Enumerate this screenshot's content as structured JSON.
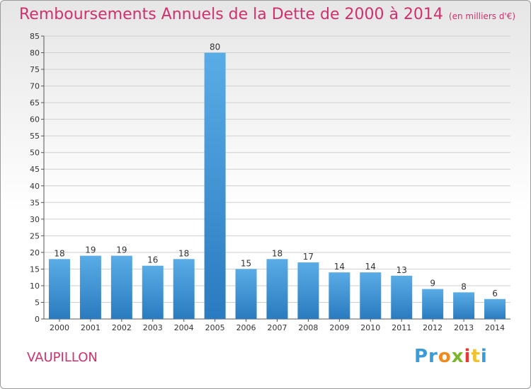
{
  "title": "Remboursements Annuels de la Dette de 2000 à 2014",
  "unit": "(en milliers d'€)",
  "commune": "VAUPILLON",
  "logo": {
    "p1": "Pr",
    "p2": "o",
    "p3": "x",
    "p4": "i",
    "p5": "t",
    "p6": "i"
  },
  "colors": {
    "title": "#d0306e",
    "bar_top": "#5aace6",
    "bar_bottom": "#2a7bbf",
    "grid": "#cfcfcf"
  },
  "chart_data": {
    "type": "bar",
    "categories": [
      "2000",
      "2001",
      "2002",
      "2003",
      "2004",
      "2005",
      "2006",
      "2007",
      "2008",
      "2009",
      "2010",
      "2011",
      "2012",
      "2013",
      "2014"
    ],
    "values": [
      18,
      19,
      19,
      16,
      18,
      80,
      15,
      18,
      17,
      14,
      14,
      13,
      9,
      8,
      6
    ],
    "ylim": [
      0,
      85
    ],
    "yticks": [
      0,
      5,
      10,
      15,
      20,
      25,
      30,
      35,
      40,
      45,
      50,
      55,
      60,
      65,
      70,
      75,
      80,
      85
    ],
    "grid": true
  }
}
